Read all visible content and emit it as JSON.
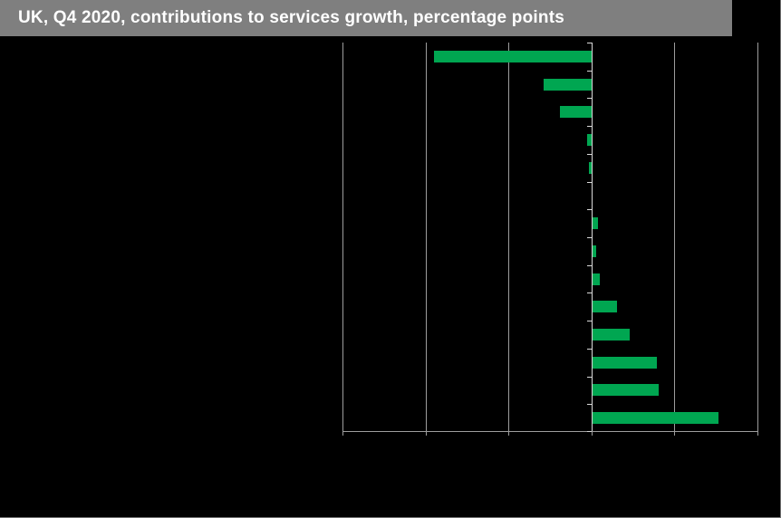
{
  "title": "UK, Q4 2020, contributions to services growth, percentage points",
  "colors": {
    "background": "#000000",
    "title_bar": "#7f7f7f",
    "title_text": "#ffffff",
    "bar": "#00a651",
    "gridline": "#9d9d9d",
    "zero_line": "#d9d9d9"
  },
  "chart_data": {
    "type": "bar",
    "orientation": "horizontal",
    "title": "UK, Q4 2020, contributions to services growth, percentage points",
    "xlabel": "",
    "ylabel": "",
    "categories": [
      "",
      "",
      "",
      "",
      "",
      "",
      "",
      "",
      "",
      "",
      "",
      "",
      "",
      ""
    ],
    "values": [
      -1.9,
      -0.58,
      -0.38,
      -0.05,
      -0.03,
      0,
      0.07,
      0.05,
      0.09,
      0.3,
      0.45,
      0.78,
      0.8,
      1.52
    ],
    "xlim": [
      -3,
      2
    ],
    "x_gridlines": [
      -3,
      -2,
      -1,
      0,
      1,
      2
    ],
    "grid": "vertical",
    "legend": "none",
    "bar_color": "#00a651"
  }
}
